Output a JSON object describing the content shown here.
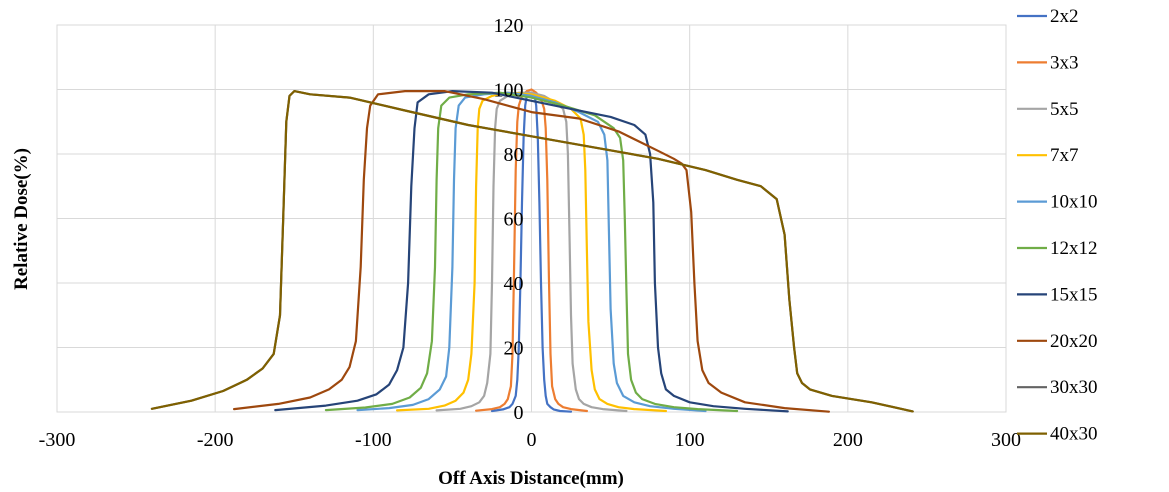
{
  "chart_data": {
    "type": "line",
    "xlabel": "Off Axis Distance(mm)",
    "ylabel": "Relative Dose(%)",
    "xlim": [
      -300,
      300
    ],
    "ylim": [
      0,
      120
    ],
    "x_ticks": [
      "-300",
      "-200",
      "-100",
      "0",
      "100",
      "200",
      "300"
    ],
    "y_ticks": [
      "0",
      "20",
      "40",
      "60",
      "80",
      "100",
      "120"
    ],
    "grid": true,
    "legend_position": "right",
    "series": [
      {
        "name": "2x2",
        "color": "#4472c4",
        "x": [
          -25,
          -18,
          -14,
          -12,
          -10,
          -9,
          -8,
          -7,
          -6,
          -5,
          -4,
          -3,
          -2,
          0,
          2,
          3,
          4,
          5,
          6,
          7,
          8,
          9,
          10,
          12,
          14,
          18,
          25
        ],
        "y": [
          0.3,
          0.8,
          1.5,
          2.5,
          5,
          10,
          20,
          40,
          65,
          85,
          95,
          98,
          99,
          99,
          98,
          95,
          85,
          65,
          40,
          20,
          10,
          5,
          2.5,
          1.5,
          0.8,
          0.3,
          0.1
        ]
      },
      {
        "name": "3x3",
        "color": "#ed7d31",
        "x": [
          -35,
          -25,
          -20,
          -17,
          -15,
          -13,
          -12,
          -11,
          -10,
          -9,
          -8,
          -6,
          -3,
          0,
          3,
          6,
          8,
          9,
          10,
          11,
          12,
          13,
          15,
          17,
          20,
          25,
          35
        ],
        "y": [
          0.4,
          0.9,
          1.5,
          2.5,
          4,
          8,
          18,
          45,
          75,
          90,
          95,
          98,
          99.5,
          100,
          99,
          97,
          94,
          88,
          72,
          42,
          18,
          8,
          4,
          2.5,
          1.5,
          0.9,
          0.3
        ]
      },
      {
        "name": "5x5",
        "color": "#a5a5a5",
        "x": [
          -60,
          -45,
          -38,
          -33,
          -30,
          -28,
          -26,
          -25,
          -24,
          -23,
          -22,
          -20,
          -15,
          -8,
          0,
          8,
          15,
          20,
          22,
          23,
          24,
          25,
          26,
          28,
          30,
          33,
          38,
          45,
          60
        ],
        "y": [
          0.5,
          1,
          1.8,
          3,
          5,
          9,
          18,
          40,
          70,
          88,
          94,
          96.5,
          98,
          99,
          99,
          98,
          96,
          94,
          90,
          80,
          55,
          30,
          15,
          7,
          4,
          2.5,
          1.5,
          0.9,
          0.3
        ]
      },
      {
        "name": "7x7",
        "color": "#ffc000",
        "x": [
          -85,
          -65,
          -55,
          -48,
          -43,
          -40,
          -38,
          -36,
          -35,
          -34,
          -33,
          -31,
          -25,
          -15,
          0,
          15,
          25,
          31,
          33,
          34,
          35,
          36,
          38,
          40,
          43,
          48,
          55,
          65,
          85
        ],
        "y": [
          0.5,
          1,
          2,
          3.5,
          6,
          10,
          18,
          40,
          70,
          88,
          94,
          96.5,
          98,
          99,
          98.5,
          96.5,
          94,
          91,
          86,
          75,
          50,
          28,
          13,
          7,
          4,
          2.5,
          1.5,
          0.9,
          0.3
        ]
      },
      {
        "name": "10x10",
        "color": "#5b9bd5",
        "x": [
          -110,
          -90,
          -75,
          -65,
          -58,
          -54,
          -52,
          -50,
          -49,
          -48,
          -46,
          -42,
          -30,
          -15,
          0,
          15,
          30,
          42,
          46,
          48,
          49,
          50,
          52,
          54,
          58,
          65,
          75,
          90,
          110
        ],
        "y": [
          0.6,
          1.2,
          2.2,
          4,
          7,
          11,
          20,
          45,
          72,
          88,
          95,
          97.5,
          98.5,
          99,
          98,
          96,
          93,
          90,
          86,
          78,
          55,
          32,
          15,
          9,
          5,
          3,
          1.8,
          1,
          0.3
        ]
      },
      {
        "name": "12x12",
        "color": "#70ad47",
        "x": [
          -130,
          -105,
          -88,
          -77,
          -70,
          -66,
          -63,
          -61,
          -60,
          -59,
          -57,
          -52,
          -40,
          -20,
          0,
          20,
          40,
          52,
          56,
          58,
          59,
          60,
          61,
          63,
          66,
          70,
          78,
          90,
          105,
          130
        ],
        "y": [
          0.6,
          1.4,
          2.5,
          4.5,
          7.5,
          12,
          22,
          45,
          72,
          88,
          95,
          97.5,
          98.5,
          99,
          97.5,
          95,
          92,
          88,
          85,
          78,
          60,
          38,
          18,
          10,
          6,
          4,
          2.5,
          1.5,
          0.9,
          0.3
        ]
      },
      {
        "name": "15x15",
        "color": "#264478",
        "x": [
          -162,
          -130,
          -110,
          -98,
          -90,
          -85,
          -81,
          -78,
          -76,
          -74,
          -72,
          -65,
          -50,
          -25,
          0,
          25,
          50,
          65,
          72,
          75,
          77,
          78,
          80,
          82,
          85,
          90,
          100,
          115,
          135,
          162
        ],
        "y": [
          0.6,
          2,
          3.5,
          5.5,
          8.5,
          13,
          20,
          40,
          70,
          88,
          96,
          98.5,
          99.5,
          99,
          96.5,
          94,
          91.5,
          89,
          86,
          80,
          65,
          40,
          20,
          12,
          7,
          5,
          3,
          1.8,
          1,
          0.2
        ]
      },
      {
        "name": "20x20",
        "color": "#9e480e",
        "x": [
          -188,
          -160,
          -140,
          -128,
          -120,
          -115,
          -111,
          -108,
          -106,
          -104,
          -102,
          -97,
          -80,
          -55,
          -30,
          0,
          30,
          55,
          80,
          90,
          95,
          98,
          101,
          103,
          105,
          108,
          112,
          120,
          135,
          160,
          188
        ],
        "y": [
          0.9,
          2.5,
          4.5,
          7,
          10,
          14,
          22,
          45,
          72,
          88,
          95,
          98.5,
          99.5,
          99.5,
          97,
          93,
          91,
          87,
          81,
          78.5,
          77,
          75,
          62,
          40,
          22,
          13,
          9,
          6,
          3,
          1.2,
          0.1
        ]
      },
      {
        "name": "30x30",
        "color": "#636363",
        "x": [
          -240,
          -215,
          -195,
          -180,
          -170,
          -163,
          -159,
          -157,
          -155,
          -153,
          -150,
          -140,
          -115,
          -80,
          -40,
          0,
          40,
          80,
          110,
          130,
          145,
          155,
          160,
          163,
          166,
          168,
          171,
          176,
          190,
          215,
          241
        ],
        "y": [
          1,
          3.5,
          6.5,
          10,
          13.5,
          18,
          30,
          60,
          90,
          98,
          99.5,
          98.5,
          97.5,
          93.5,
          89,
          85.5,
          82,
          78.5,
          75,
          72,
          70,
          66,
          55,
          35,
          20,
          12,
          9,
          7,
          5,
          3,
          0.2
        ]
      },
      {
        "name": "40x30",
        "color": "#7f6000",
        "x": [
          -240,
          -215,
          -195,
          -180,
          -170,
          -163,
          -159,
          -157,
          -155,
          -153,
          -150,
          -140,
          -115,
          -80,
          -40,
          0,
          40,
          80,
          110,
          130,
          145,
          155,
          160,
          163,
          166,
          168,
          171,
          176,
          190,
          215,
          241
        ],
        "y": [
          1,
          3.5,
          6.5,
          10,
          13.5,
          18,
          30,
          60,
          90,
          98,
          99.5,
          98.5,
          97.5,
          93.5,
          89,
          85.5,
          82,
          78.5,
          75,
          72,
          70,
          66,
          55,
          35,
          20,
          12,
          9,
          7,
          5,
          3,
          0.2
        ]
      }
    ]
  }
}
